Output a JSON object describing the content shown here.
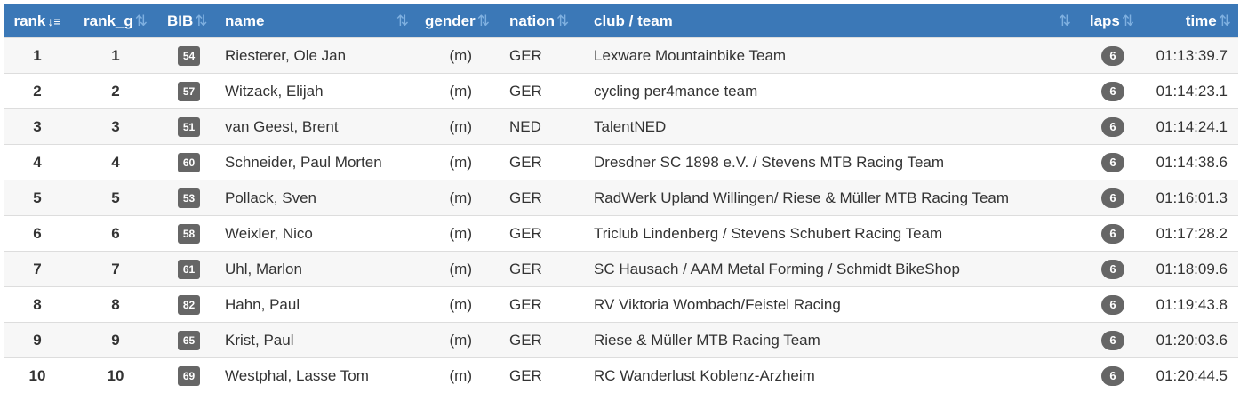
{
  "table": {
    "columns": [
      "rank",
      "rank_g",
      "BIB",
      "name",
      "gender",
      "nation",
      "club / team",
      "laps",
      "time"
    ],
    "rows": [
      [
        "1",
        "1",
        "54",
        "Riesterer, Ole Jan",
        "(m)",
        "GER",
        "Lexware Mountainbike Team",
        "6",
        "01:13:39.7"
      ],
      [
        "2",
        "2",
        "57",
        "Witzack, Elijah",
        "(m)",
        "GER",
        "cycling per4mance team",
        "6",
        "01:14:23.1"
      ],
      [
        "3",
        "3",
        "51",
        "van Geest, Brent",
        "(m)",
        "NED",
        "TalentNED",
        "6",
        "01:14:24.1"
      ],
      [
        "4",
        "4",
        "60",
        "Schneider, Paul Morten",
        "(m)",
        "GER",
        "Dresdner SC 1898 e.V. / Stevens MTB Racing Team",
        "6",
        "01:14:38.6"
      ],
      [
        "5",
        "5",
        "53",
        "Pollack, Sven",
        "(m)",
        "GER",
        "RadWerk Upland Willingen/ Riese & Müller MTB Racing Team",
        "6",
        "01:16:01.3"
      ],
      [
        "6",
        "6",
        "58",
        "Weixler, Nico",
        "(m)",
        "GER",
        "Triclub Lindenberg / Stevens Schubert Racing Team",
        "6",
        "01:17:28.2"
      ],
      [
        "7",
        "7",
        "61",
        "Uhl, Marlon",
        "(m)",
        "GER",
        "SC Hausach / AAM Metal Forming / Schmidt BikeShop",
        "6",
        "01:18:09.6"
      ],
      [
        "8",
        "8",
        "82",
        "Hahn, Paul",
        "(m)",
        "GER",
        "RV Viktoria Wombach/Feistel Racing",
        "6",
        "01:19:43.8"
      ],
      [
        "9",
        "9",
        "65",
        "Krist, Paul",
        "(m)",
        "GER",
        "Riese & Müller MTB Racing Team",
        "6",
        "01:20:03.6"
      ],
      [
        "10",
        "10",
        "69",
        "Westphal, Lasse Tom",
        "(m)",
        "GER",
        "RC Wanderlust Koblenz-Arzheim",
        "6",
        "01:20:44.5"
      ]
    ]
  }
}
